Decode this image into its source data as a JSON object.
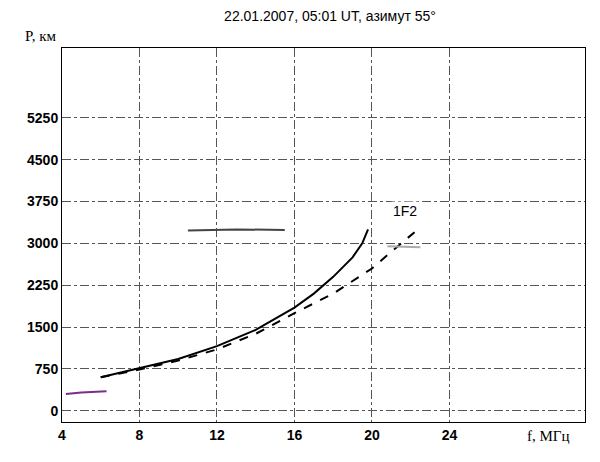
{
  "chart_data": {
    "type": "line",
    "title": "22.01.2007, 05:01 UT, азимут 55°",
    "x_label": "f, МГц",
    "y_label": "P, км",
    "xlim": [
      4,
      31
    ],
    "ylim": [
      -200,
      6500
    ],
    "xticks": [
      4,
      8,
      12,
      16,
      20,
      24
    ],
    "yticks": [
      0,
      750,
      1500,
      2250,
      3000,
      3750,
      4500,
      5250
    ],
    "grid": true,
    "series": [
      {
        "color": "#000000",
        "line_style": "solid",
        "x": [
          6,
          8,
          10,
          12,
          14,
          16,
          17,
          18,
          19,
          19.5,
          19.8
        ],
        "values": [
          600,
          760,
          930,
          1160,
          1450,
          1850,
          2100,
          2400,
          2750,
          3000,
          3250
        ]
      },
      {
        "color": "#000000",
        "line_style": "dashed",
        "x": [
          6,
          8,
          10,
          12,
          14,
          16,
          18,
          20,
          21,
          22.2
        ],
        "values": [
          600,
          740,
          900,
          1100,
          1380,
          1750,
          2100,
          2550,
          2850,
          3200
        ]
      },
      {
        "color": "#444444",
        "line_style": "solid",
        "x": [
          10.5,
          13,
          15.5
        ],
        "values": [
          3230,
          3250,
          3240
        ]
      },
      {
        "color": "#aaaaaa",
        "line_style": "solid",
        "x": [
          20.8,
          22.5
        ],
        "values": [
          2950,
          2930
        ]
      },
      {
        "color": "#7b2d8b",
        "line_style": "solid",
        "x": [
          4.2,
          5,
          6.3
        ],
        "values": [
          300,
          330,
          350
        ]
      }
    ],
    "annotations": [
      {
        "text": "1F2",
        "x": 21,
        "y": 3400
      }
    ]
  }
}
